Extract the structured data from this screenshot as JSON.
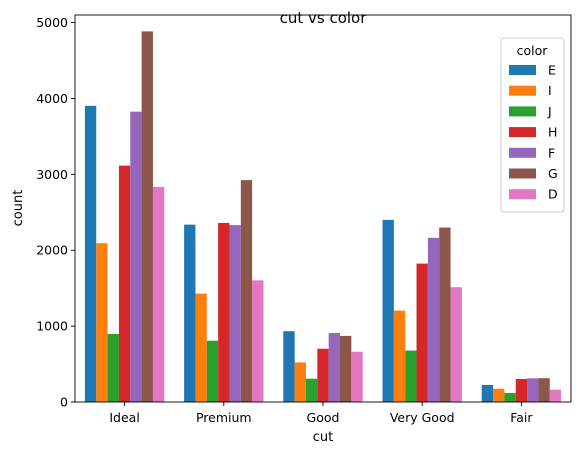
{
  "chart_data": {
    "type": "bar",
    "title": "cut vs color",
    "xlabel": "cut",
    "ylabel": "count",
    "categories": [
      "Ideal",
      "Premium",
      "Good",
      "Very Good",
      "Fair"
    ],
    "ylim": [
      0,
      5100
    ],
    "yticks": [
      0,
      1000,
      2000,
      3000,
      4000,
      5000
    ],
    "grid": false,
    "legend": {
      "title": "color",
      "placement": "top-right"
    },
    "series": [
      {
        "name": "E",
        "color": "#1f77b4",
        "values": [
          3903,
          2337,
          933,
          2400,
          224
        ]
      },
      {
        "name": "I",
        "color": "#ff7f0e",
        "values": [
          2093,
          1428,
          522,
          1204,
          175
        ]
      },
      {
        "name": "J",
        "color": "#2ca02c",
        "values": [
          896,
          808,
          307,
          678,
          119
        ]
      },
      {
        "name": "H",
        "color": "#d62728",
        "values": [
          3115,
          2360,
          702,
          1824,
          303
        ]
      },
      {
        "name": "F",
        "color": "#9467bd",
        "values": [
          3826,
          2331,
          909,
          2164,
          312
        ]
      },
      {
        "name": "G",
        "color": "#8c564b",
        "values": [
          4884,
          2924,
          871,
          2299,
          314
        ]
      },
      {
        "name": "D",
        "color": "#e377c2",
        "values": [
          2834,
          1603,
          662,
          1513,
          163
        ]
      }
    ]
  }
}
